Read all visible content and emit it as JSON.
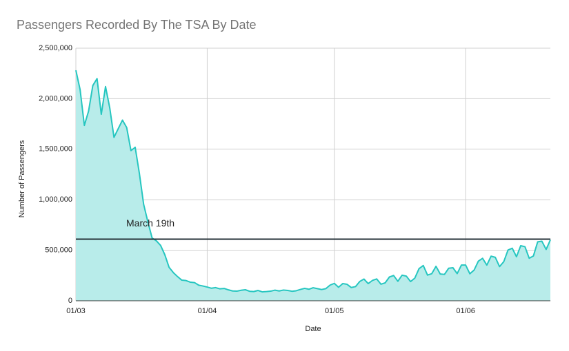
{
  "chart_data": {
    "type": "area",
    "title": "Passengers Recorded By The TSA By Date",
    "x_label": "Date",
    "y_label": "Number of Passengers",
    "x": [
      "01/03",
      "02/03",
      "03/03",
      "04/03",
      "05/03",
      "06/03",
      "07/03",
      "08/03",
      "09/03",
      "10/03",
      "11/03",
      "12/03",
      "13/03",
      "14/03",
      "15/03",
      "16/03",
      "17/03",
      "18/03",
      "19/03",
      "20/03",
      "21/03",
      "22/03",
      "23/03",
      "24/03",
      "25/03",
      "26/03",
      "27/03",
      "28/03",
      "29/03",
      "30/03",
      "31/03",
      "01/04",
      "02/04",
      "03/04",
      "04/04",
      "05/04",
      "06/04",
      "07/04",
      "08/04",
      "09/04",
      "10/04",
      "11/04",
      "12/04",
      "13/04",
      "14/04",
      "15/04",
      "16/04",
      "17/04",
      "18/04",
      "19/04",
      "20/04",
      "21/04",
      "22/04",
      "23/04",
      "24/04",
      "25/04",
      "26/04",
      "27/04",
      "28/04",
      "29/04",
      "30/04",
      "01/05",
      "02/05",
      "03/05",
      "04/05",
      "05/05",
      "06/05",
      "07/05",
      "08/05",
      "09/05",
      "10/05",
      "11/05",
      "12/05",
      "13/05",
      "14/05",
      "15/05",
      "16/05",
      "17/05",
      "18/05",
      "19/05",
      "20/05",
      "21/05",
      "22/05",
      "23/05",
      "24/05",
      "25/05",
      "26/05",
      "27/05",
      "28/05",
      "29/05",
      "30/05",
      "31/05",
      "01/06",
      "02/06",
      "03/06",
      "04/06",
      "05/06",
      "06/06",
      "07/06",
      "08/06",
      "09/06",
      "10/06",
      "11/06",
      "12/06",
      "13/06",
      "14/06",
      "15/06",
      "16/06",
      "17/06",
      "18/06",
      "19/06",
      "20/06",
      "21/06"
    ],
    "values": [
      2281000,
      2090000,
      1736000,
      1877000,
      2130000,
      2199000,
      1845000,
      2120000,
      1909000,
      1617000,
      1703000,
      1788000,
      1714000,
      1486000,
      1519000,
      1258000,
      954000,
      780000,
      621000,
      593000,
      548000,
      455000,
      331000,
      279000,
      239000,
      204000,
      200000,
      184000,
      180000,
      154000,
      146000,
      136000,
      124000,
      130000,
      118000,
      122000,
      108000,
      97000,
      95000,
      104000,
      109000,
      94000,
      91000,
      102000,
      88000,
      91000,
      95000,
      105000,
      97000,
      106000,
      102000,
      94000,
      99000,
      112000,
      123000,
      114000,
      129000,
      120000,
      111000,
      120000,
      155000,
      172000,
      134000,
      170000,
      163000,
      131000,
      140000,
      191000,
      215000,
      170000,
      201000,
      216000,
      164000,
      177000,
      235000,
      250000,
      193000,
      253000,
      244000,
      190000,
      224000,
      318000,
      349000,
      254000,
      268000,
      341000,
      265000,
      261000,
      322000,
      327000,
      269000,
      353000,
      353000,
      267000,
      304000,
      392000,
      420000,
      353000,
      441000,
      430000,
      338000,
      387000,
      502000,
      520000,
      436000,
      545000,
      535000,
      421000,
      444000,
      583000,
      589000,
      508000,
      603000
    ],
    "color": "#26c6c0",
    "fill_color": "#b8ecea",
    "xticks": [
      "01/03",
      "01/04",
      "01/05",
      "01/06"
    ],
    "ylim": [
      0,
      2500000
    ],
    "yticks": [
      0,
      {
        "value": 500000,
        "label": "500,000"
      },
      {
        "value": 1000000,
        "label": "1,000,000"
      },
      {
        "value": 1500000,
        "label": "1,500,000"
      },
      {
        "value": 2000000,
        "label": "2,000,000"
      },
      {
        "value": 2500000,
        "label": "2,500,000"
      }
    ],
    "grid": true,
    "reference_line": {
      "value": 610000,
      "label": "March 19th",
      "color": "#263238"
    }
  }
}
